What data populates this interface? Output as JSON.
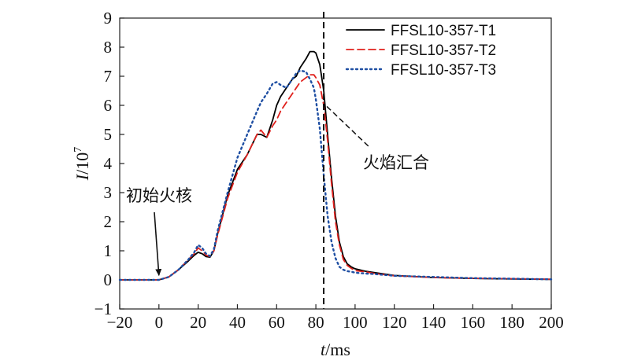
{
  "chart_data": {
    "type": "line",
    "xlabel_italic": "t",
    "xlabel_unit": "/ms",
    "ylabel_italic": "I",
    "ylabel_unit": "/10",
    "ylabel_exp": "7",
    "xlim": [
      -20,
      200
    ],
    "ylim": [
      -1,
      9
    ],
    "xticks": [
      -20,
      0,
      20,
      40,
      60,
      80,
      100,
      120,
      140,
      160,
      180,
      200
    ],
    "yticks": [
      -1,
      0,
      1,
      2,
      3,
      4,
      5,
      6,
      7,
      8,
      9
    ],
    "grid": false,
    "legend_position": "top-right",
    "series": [
      {
        "name": "FFSL10-357-T1",
        "color": "#000000",
        "style": "solid",
        "x": [
          -20,
          0,
          5,
          10,
          15,
          18,
          20,
          22,
          24,
          26,
          28,
          30,
          35,
          40,
          45,
          50,
          52,
          55,
          58,
          60,
          62,
          65,
          68,
          70,
          72,
          75,
          77,
          79,
          80,
          82,
          84,
          86,
          88,
          90,
          92,
          94,
          96,
          98,
          100,
          105,
          110,
          120,
          140,
          160,
          180,
          200
        ],
        "y": [
          0,
          0,
          0.1,
          0.35,
          0.65,
          0.85,
          0.95,
          0.9,
          0.8,
          0.78,
          1.0,
          1.6,
          2.9,
          3.8,
          4.3,
          5.0,
          5.0,
          4.9,
          5.5,
          6.0,
          6.3,
          6.6,
          6.9,
          7.0,
          7.3,
          7.6,
          7.85,
          7.85,
          7.8,
          7.4,
          6.5,
          5.0,
          3.5,
          2.2,
          1.3,
          0.8,
          0.55,
          0.45,
          0.38,
          0.3,
          0.25,
          0.15,
          0.08,
          0.05,
          0.03,
          0.02
        ]
      },
      {
        "name": "FFSL10-357-T2",
        "color": "#e0211d",
        "style": "dashed",
        "x": [
          -20,
          0,
          5,
          10,
          15,
          18,
          20,
          22,
          24,
          26,
          28,
          30,
          35,
          40,
          45,
          50,
          52,
          55,
          58,
          60,
          62,
          65,
          68,
          70,
          72,
          75,
          77,
          79,
          80,
          82,
          84,
          86,
          88,
          90,
          92,
          94,
          96,
          98,
          100,
          105,
          110,
          120,
          140,
          160,
          180,
          200
        ],
        "y": [
          0,
          0,
          0.1,
          0.35,
          0.7,
          0.9,
          1.1,
          1.0,
          0.85,
          0.8,
          1.0,
          1.55,
          2.8,
          3.7,
          4.3,
          5.0,
          5.15,
          4.9,
          5.3,
          5.5,
          5.8,
          6.1,
          6.4,
          6.6,
          6.8,
          6.95,
          7.05,
          7.05,
          6.95,
          6.7,
          6.0,
          4.8,
          3.3,
          2.0,
          1.2,
          0.7,
          0.5,
          0.4,
          0.32,
          0.28,
          0.22,
          0.14,
          0.08,
          0.05,
          0.04,
          0.02
        ]
      },
      {
        "name": "FFSL10-357-T3",
        "color": "#1f4fa3",
        "style": "dotted",
        "x": [
          -20,
          0,
          5,
          10,
          15,
          18,
          20,
          22,
          24,
          26,
          28,
          30,
          35,
          40,
          45,
          50,
          52,
          55,
          58,
          60,
          62,
          65,
          68,
          70,
          72,
          75,
          77,
          79,
          80,
          82,
          84,
          86,
          88,
          90,
          92,
          94,
          96,
          98,
          100,
          105,
          110,
          120,
          140,
          160,
          180,
          200
        ],
        "y": [
          0,
          0,
          0.1,
          0.35,
          0.7,
          0.95,
          1.2,
          1.1,
          0.9,
          0.82,
          1.05,
          1.7,
          3.0,
          4.2,
          5.0,
          5.8,
          6.1,
          6.4,
          6.75,
          6.8,
          6.7,
          6.6,
          6.9,
          7.1,
          7.2,
          7.15,
          6.9,
          6.6,
          6.2,
          5.2,
          3.6,
          2.2,
          1.3,
          0.75,
          0.45,
          0.35,
          0.3,
          0.28,
          0.25,
          0.22,
          0.2,
          0.14,
          0.1,
          0.06,
          0.04,
          0.02
        ]
      }
    ],
    "vertical_marker_x": 84,
    "annotations": [
      {
        "text": "火焰汇合",
        "point_x": 84,
        "point_y": 5.8
      },
      {
        "text": "初始火核",
        "point_x": 0,
        "point_y": 0.05
      }
    ]
  }
}
